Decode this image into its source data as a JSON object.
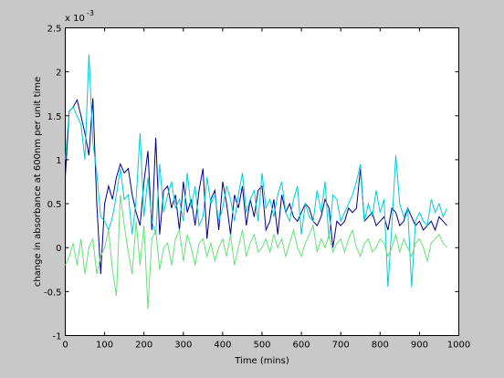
{
  "chart_data": {
    "type": "line",
    "xlabel": "Time (mins)",
    "ylabel": "change in absorbance at 600nm per unit time",
    "y_exponent_label": "x 10",
    "y_exponent_power": "-3",
    "xlim": [
      0,
      1000
    ],
    "ylim": [
      -1,
      2.5
    ],
    "x_ticks": [
      "0",
      "100",
      "200",
      "300",
      "400",
      "500",
      "600",
      "700",
      "800",
      "900",
      "1000"
    ],
    "y_ticks": [
      "-1",
      "-0.5",
      "0",
      "0.5",
      "1",
      "1.5",
      "2",
      "2.5"
    ],
    "grid": false,
    "legend": false,
    "x": [
      0,
      10,
      20,
      30,
      40,
      50,
      60,
      70,
      80,
      90,
      100,
      110,
      120,
      130,
      140,
      150,
      160,
      170,
      180,
      190,
      200,
      210,
      220,
      230,
      240,
      250,
      260,
      270,
      280,
      290,
      300,
      310,
      320,
      330,
      340,
      350,
      360,
      370,
      380,
      390,
      400,
      410,
      420,
      430,
      440,
      450,
      460,
      470,
      480,
      490,
      500,
      510,
      520,
      530,
      540,
      550,
      560,
      570,
      580,
      590,
      600,
      610,
      620,
      630,
      640,
      650,
      660,
      670,
      680,
      690,
      700,
      710,
      720,
      730,
      740,
      750,
      760,
      770,
      780,
      790,
      800,
      810,
      820,
      830,
      840,
      850,
      860,
      870,
      880,
      890,
      900,
      910,
      920,
      930,
      940,
      950,
      960,
      970
    ],
    "series": [
      {
        "color": "#00008b",
        "values": [
          0.8,
          1.55,
          1.6,
          1.68,
          1.5,
          1.3,
          1.05,
          1.7,
          0.5,
          -0.3,
          0.5,
          0.7,
          0.55,
          0.8,
          0.95,
          0.85,
          0.9,
          0.6,
          0.4,
          0.25,
          0.75,
          1.1,
          0.2,
          1.25,
          0.15,
          0.65,
          0.7,
          0.45,
          0.6,
          0.2,
          0.75,
          0.4,
          0.55,
          0.25,
          0.65,
          0.9,
          0.1,
          0.55,
          0.65,
          0.2,
          0.75,
          0.5,
          0.15,
          0.6,
          0.45,
          0.7,
          0.25,
          0.55,
          0.35,
          0.65,
          0.7,
          0.2,
          0.3,
          0.55,
          0.15,
          0.6,
          0.4,
          0.5,
          0.35,
          0.3,
          0.4,
          0.5,
          0.45,
          0.3,
          0.25,
          0.35,
          0.55,
          0.45,
          0.0,
          0.3,
          0.25,
          0.3,
          0.45,
          0.4,
          0.45,
          0.9,
          0.3,
          0.35,
          0.4,
          0.25,
          0.3,
          0.35,
          0.2,
          0.45,
          0.4,
          0.25,
          0.3,
          0.45,
          0.35,
          0.25,
          0.3,
          0.2,
          0.25,
          0.3,
          0.2,
          0.35,
          0.3,
          0.25
        ]
      },
      {
        "color": "#00cdd9",
        "values": [
          1.0,
          1.55,
          1.6,
          1.5,
          1.4,
          1.0,
          2.2,
          1.2,
          0.85,
          0.35,
          0.3,
          0.2,
          0.35,
          0.6,
          0.9,
          0.55,
          0.6,
          0.15,
          0.55,
          1.3,
          0.35,
          0.8,
          0.3,
          0.15,
          0.95,
          0.4,
          0.6,
          0.75,
          0.45,
          0.55,
          0.3,
          0.85,
          0.45,
          0.7,
          0.25,
          0.35,
          0.8,
          0.5,
          0.6,
          0.3,
          0.45,
          0.7,
          0.55,
          0.3,
          0.6,
          0.85,
          0.4,
          0.55,
          0.65,
          0.3,
          0.85,
          0.45,
          0.55,
          0.35,
          0.6,
          0.75,
          0.4,
          0.3,
          0.55,
          0.7,
          0.15,
          0.5,
          0.35,
          0.3,
          0.65,
          0.4,
          0.75,
          0.1,
          0.6,
          0.55,
          0.3,
          0.4,
          0.5,
          0.6,
          0.75,
          0.95,
          0.3,
          0.5,
          0.35,
          0.65,
          0.4,
          0.55,
          -0.45,
          0.25,
          1.05,
          0.5,
          0.35,
          0.45,
          -0.45,
          0.3,
          0.4,
          0.3,
          0.25,
          0.55,
          0.4,
          0.5,
          0.35,
          0.45
        ]
      },
      {
        "color": "#66e07a",
        "values": [
          -0.2,
          -0.1,
          0.05,
          -0.2,
          0.1,
          -0.3,
          0.0,
          0.1,
          -0.3,
          -0.1,
          0.0,
          0.2,
          -0.25,
          -0.55,
          0.6,
          0.25,
          -0.05,
          -0.3,
          0.3,
          -0.2,
          0.25,
          -0.7,
          0.1,
          0.2,
          -0.25,
          0.0,
          0.05,
          -0.2,
          0.1,
          0.2,
          -0.15,
          0.15,
          0.0,
          -0.2,
          0.05,
          0.1,
          -0.1,
          0.05,
          -0.15,
          0.0,
          0.1,
          -0.1,
          0.15,
          -0.2,
          0.0,
          0.2,
          -0.1,
          0.05,
          0.15,
          -0.05,
          0.0,
          0.1,
          -0.05,
          0.15,
          0.0,
          0.1,
          -0.1,
          0.05,
          0.2,
          0.0,
          -0.1,
          0.05,
          0.15,
          0.25,
          -0.05,
          0.1,
          0.0,
          0.15,
          -0.05,
          0.05,
          0.1,
          -0.05,
          0.1,
          0.2,
          0.0,
          -0.1,
          0.05,
          0.1,
          -0.05,
          0.0,
          0.1,
          0.05,
          -0.1,
          0.0,
          0.15,
          -0.05,
          0.1,
          0.0,
          -0.1,
          0.05,
          0.1,
          0.0,
          -0.15,
          0.05,
          0.1,
          0.15,
          0.05,
          0.0
        ]
      }
    ]
  }
}
